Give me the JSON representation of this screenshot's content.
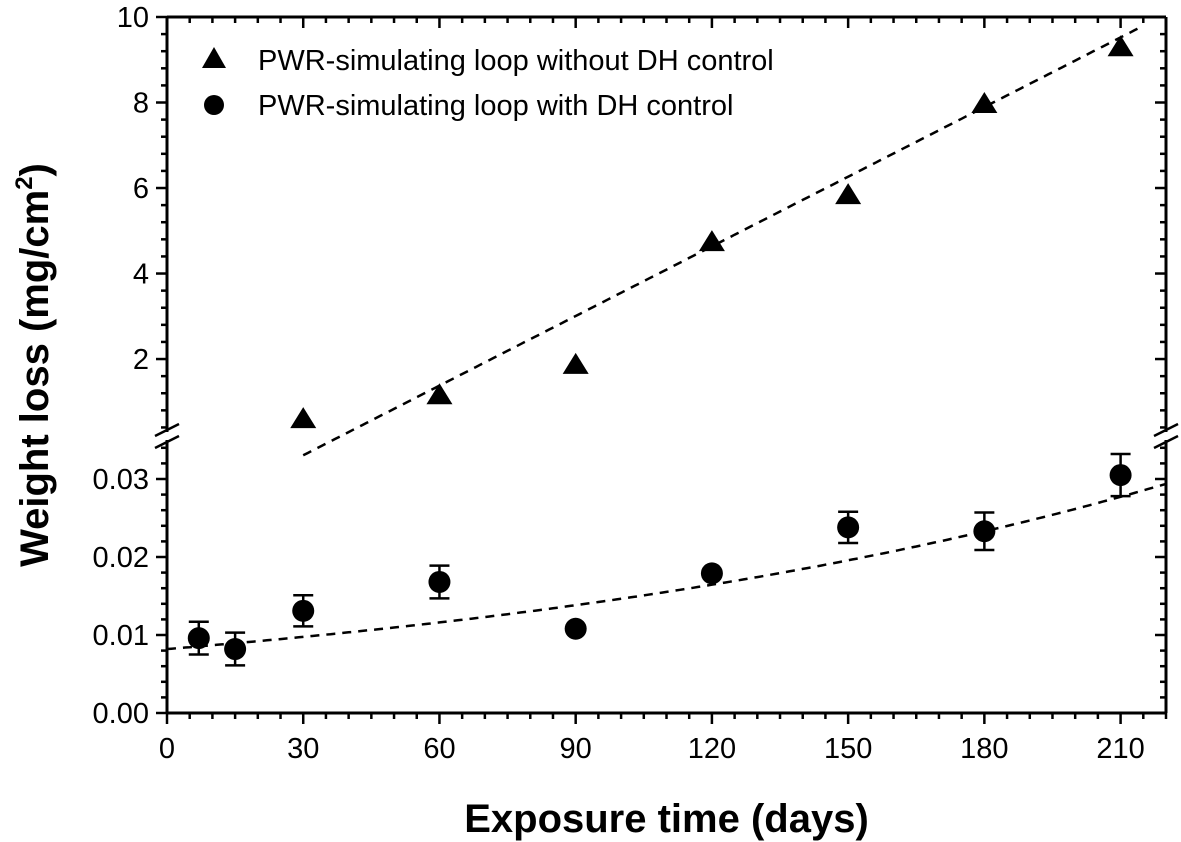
{
  "chart_data": {
    "type": "scatter",
    "title": "",
    "xlabel": "Exposure time (days)",
    "ylabel": "Weight loss (mg/cm",
    "ylabel_superscript": "2",
    "ylabel_suffix": ")",
    "xlim": [
      0,
      220
    ],
    "x_ticks": [
      0,
      30,
      60,
      90,
      120,
      150,
      180,
      210
    ],
    "x_tick_labels": [
      "0",
      "30",
      "60",
      "90",
      "120",
      "150",
      "180",
      "210"
    ],
    "y_axis_break": true,
    "y_segments": [
      {
        "name": "upper",
        "ylim": [
          0.2,
          10
        ],
        "ticks": [
          2,
          4,
          6,
          8,
          10
        ],
        "tick_labels": [
          "2",
          "4",
          "6",
          "8",
          "10"
        ],
        "minor_step": 0.4
      },
      {
        "name": "lower",
        "ylim": [
          0,
          0.035
        ],
        "ticks": [
          0.0,
          0.01,
          0.02,
          0.03
        ],
        "tick_labels": [
          "0.00",
          "0.01",
          "0.02",
          "0.03"
        ],
        "minor_step": 0.002
      }
    ],
    "grid": false,
    "legend_position": "top-left",
    "series": [
      {
        "name": "PWR-simulating loop without DH control",
        "marker": "triangle",
        "segment": "upper",
        "x": [
          30,
          60,
          90,
          120,
          150,
          180,
          210
        ],
        "y": [
          0.57,
          1.13,
          1.84,
          4.71,
          5.81,
          7.94,
          9.27
        ],
        "trend": {
          "type": "linear",
          "slope": 0.0543,
          "intercept": -1.88,
          "x_range": [
            30,
            215
          ]
        }
      },
      {
        "name": "PWR-simulating loop with DH control",
        "marker": "circle",
        "segment": "lower",
        "x": [
          7,
          15,
          30,
          60,
          90,
          120,
          150,
          180,
          210
        ],
        "y": [
          0.0096,
          0.0082,
          0.0131,
          0.0168,
          0.0108,
          0.0179,
          0.0238,
          0.0233,
          0.0305
        ],
        "yerr": [
          0.0021,
          0.0021,
          0.002,
          0.0021,
          0,
          0,
          0.002,
          0.0024,
          0.0027
        ],
        "trend": {
          "type": "exponential",
          "a": 0.0082,
          "b": 0.0058,
          "x_range": [
            0,
            220
          ]
        }
      }
    ]
  }
}
